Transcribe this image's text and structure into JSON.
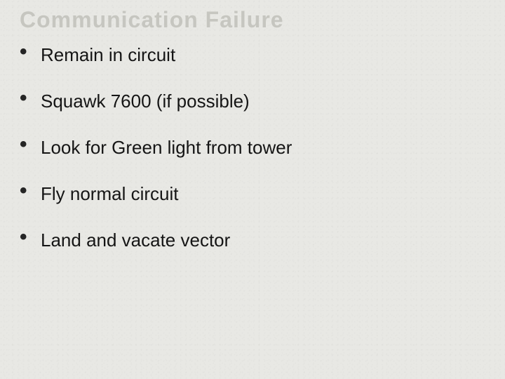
{
  "slide": {
    "title": "Communication Failure",
    "title_color": "#c6c6c0",
    "title_fontsize": 32,
    "title_fontweight": 900,
    "background_color": "#e8e8e4",
    "text_color": "#151515",
    "bullet_char": "•",
    "bullet_color": "#252525",
    "item_fontsize": 26,
    "bullets": [
      {
        "text": "Remain in circuit"
      },
      {
        "text": "Squawk 7600 (if possible)"
      },
      {
        "text": "Look for Green light from tower"
      },
      {
        "text": "Fly normal circuit"
      },
      {
        "text": "Land and vacate vector"
      }
    ]
  }
}
